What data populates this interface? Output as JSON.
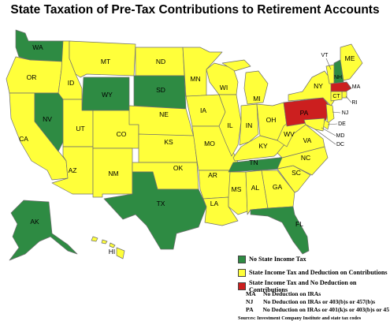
{
  "title": "State Taxation of Pre-Tax Contributions to Retirement Accounts",
  "colors": {
    "no_income_tax": "#2e8b43",
    "deduction": "#ffff3a",
    "no_deduction": "#cc1f1f"
  },
  "states": {
    "WA": "WA",
    "OR": "OR",
    "CA": "CA",
    "ID": "ID",
    "NV": "NV",
    "MT": "MT",
    "WY": "WY",
    "UT": "UT",
    "AZ": "AZ",
    "CO": "CO",
    "NM": "NM",
    "ND": "ND",
    "SD": "SD",
    "NE": "NE",
    "KS": "KS",
    "OK": "OK",
    "TX": "TX",
    "MN": "MN",
    "IA": "IA",
    "MO": "MO",
    "AR": "AR",
    "LA": "LA",
    "WI": "WI",
    "IL": "IL",
    "MI": "MI",
    "IN": "IN",
    "OH": "OH",
    "KY": "KY",
    "TN": "TN",
    "MS": "MS",
    "AL": "AL",
    "GA": "GA",
    "FL": "FL",
    "SC": "SC",
    "NC": "NC",
    "VA": "VA",
    "WV": "WV",
    "PA": "PA",
    "NY": "NY",
    "VT": "VT",
    "NH": "NH",
    "ME": "ME",
    "MA": "MA",
    "RI": "RI",
    "CT": "CT",
    "NJ": "NJ",
    "DE": "DE",
    "MD": "MD",
    "DC": "DC",
    "AK": "AK",
    "HI": "HI"
  },
  "legend": {
    "no_income_tax": "No State Income Tax",
    "deduction": "State Income Tax and Deduction on Contributions",
    "no_deduction": "State Income Tax and No Deduction on Contributions"
  },
  "notes": [
    {
      "code": "MA",
      "text": "No Deduction on IRAs"
    },
    {
      "code": "NJ",
      "text": "No Deduction on IRAs or 403(b)s or 457(b)s"
    },
    {
      "code": "PA",
      "text": "No Deduction on IRAs or 401(k)s or 403(b)s or 45"
    }
  ],
  "sources": "Sources: Investment Company Institute and state tax codes"
}
